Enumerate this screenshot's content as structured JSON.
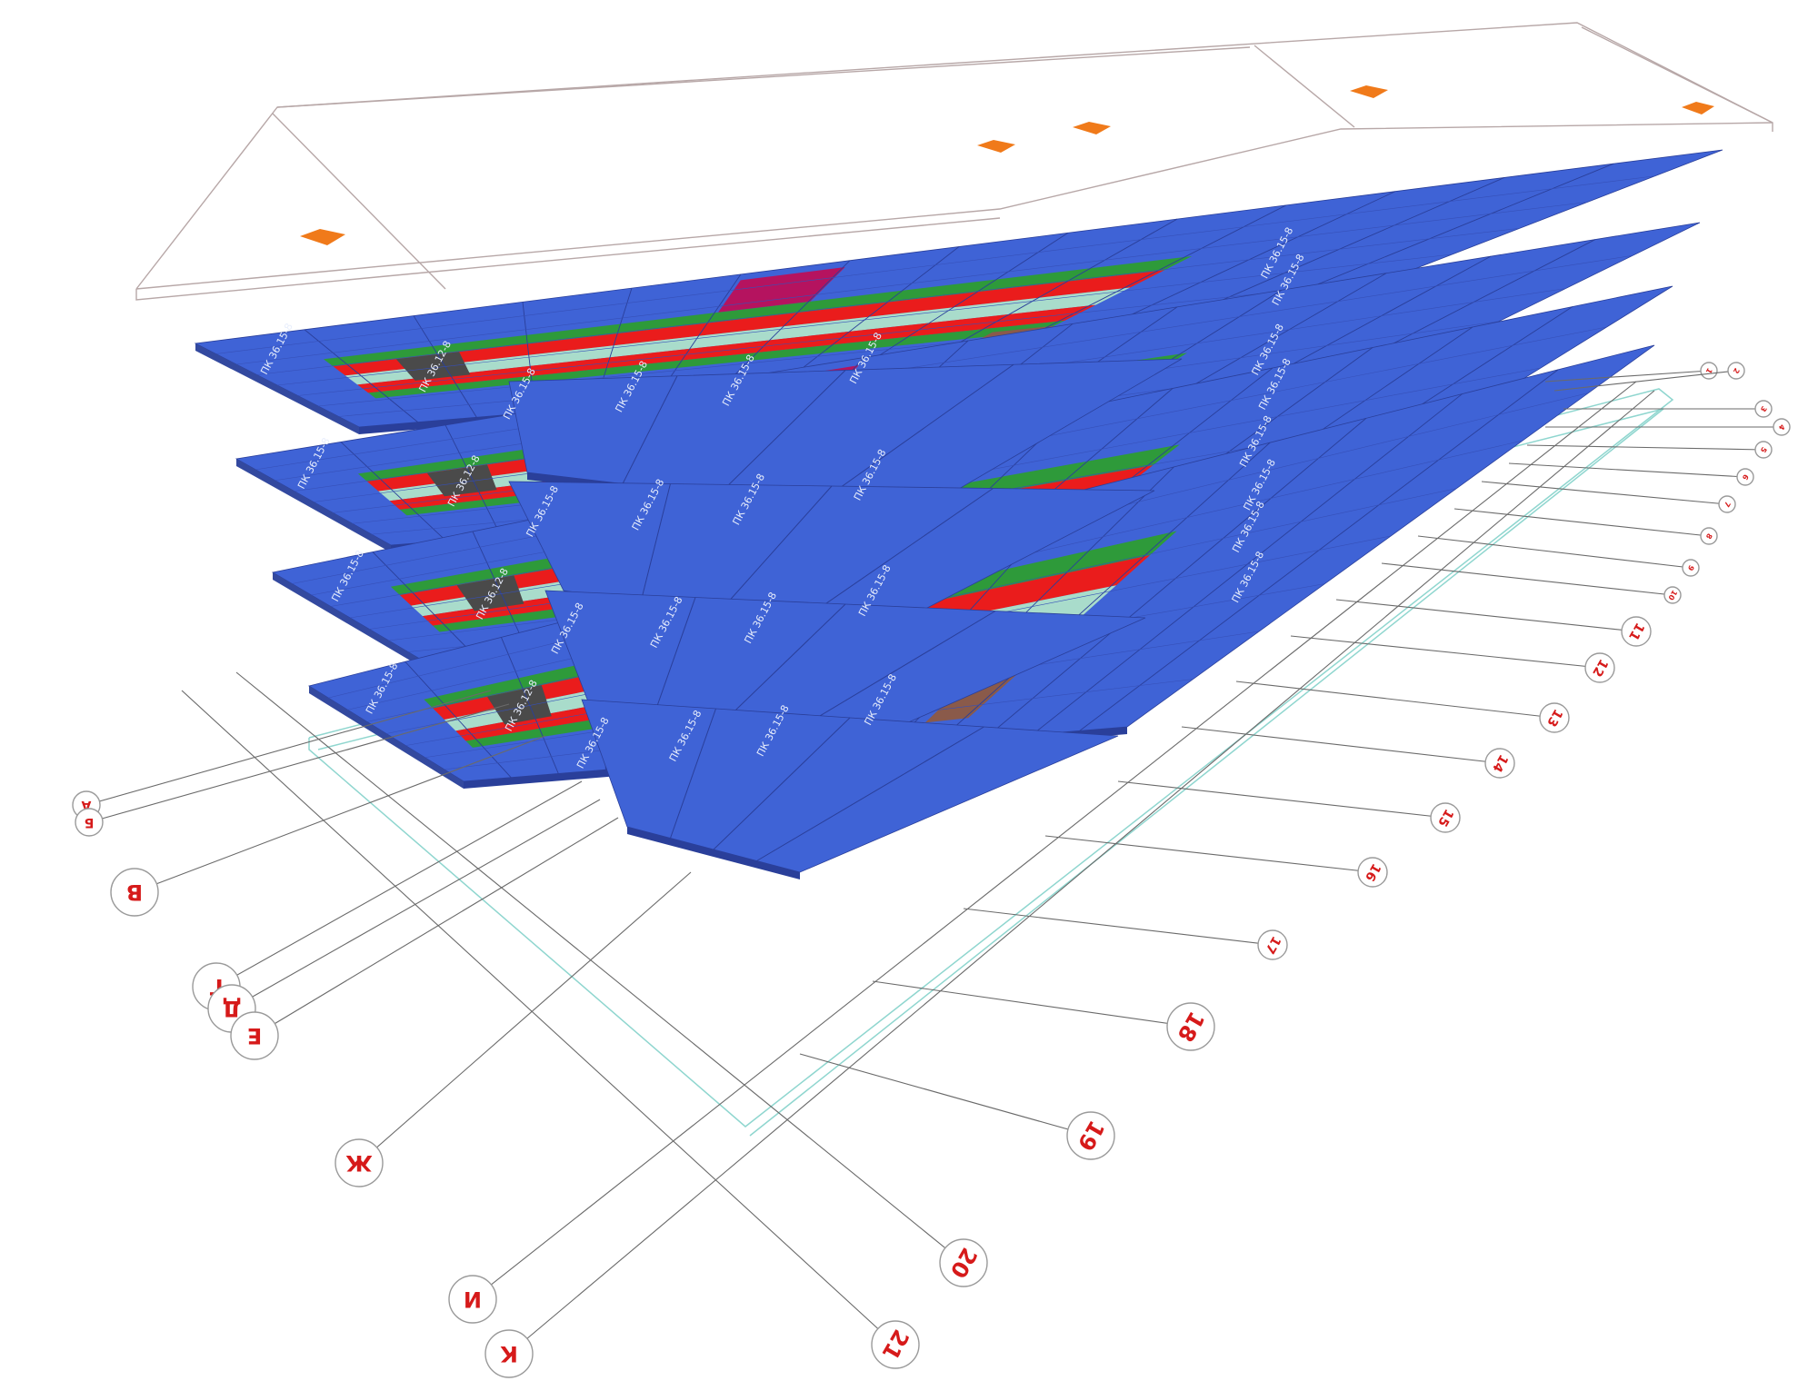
{
  "diagram": {
    "panel_mark": "ПК 36.15-8",
    "core_mark": "ПК 36.12-8",
    "colors": {
      "slab_blue": "#3f63d6",
      "slab_blue_dark": "#2a3f9a",
      "corridor_red": "#ea1c1c",
      "corridor_green": "#2e9a3a",
      "corridor_mint": "#a9dccb",
      "core_gray": "#4a4a4a",
      "stair_brown": "#8a5a4a",
      "magenta": "#b5135f",
      "accent_orange": "#f07a1a",
      "axis_red": "#d61a1a"
    },
    "levels": [
      "roof",
      "floor-4",
      "floor-3",
      "floor-2",
      "floor-1"
    ],
    "letter_axes": [
      "А",
      "Б",
      "В",
      "Г",
      "Д",
      "Е",
      "Ж",
      "И",
      "К"
    ],
    "number_axes": [
      "1",
      "2",
      "3",
      "4",
      "5",
      "6",
      "7",
      "8",
      "9",
      "10",
      "11",
      "12",
      "13",
      "14",
      "15",
      "16",
      "17",
      "18",
      "19",
      "20",
      "21"
    ]
  }
}
